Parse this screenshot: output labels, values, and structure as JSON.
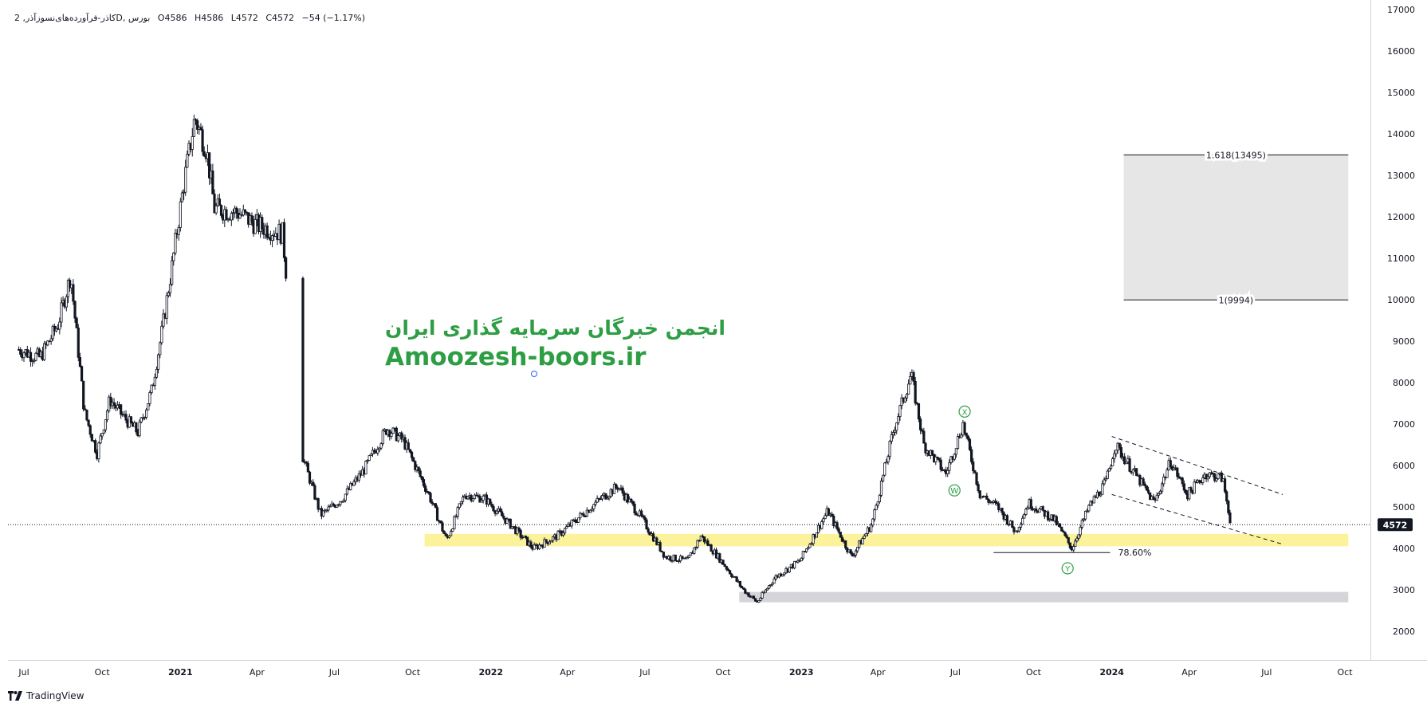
{
  "legend": {
    "symbol": "کاذر-فرآورده‌های‌نسوزآذر, 2D, بورس",
    "open": "O4586",
    "high": "H4586",
    "low": "L4572",
    "close": "C4572",
    "change": "−54 (−1.17%)"
  },
  "watermark": {
    "line1": "انجمن خبرگان سرمایه گذاری ایران",
    "line2": "Amoozesh-boors.ir"
  },
  "brand": {
    "name": "TradingView",
    "icon": "tradingview-logo-icon"
  },
  "colors": {
    "candle": "#131722",
    "support_zone": "#fbf29b",
    "lower_zone": "#d4d4d9",
    "target_zone": "#e6e6e6",
    "wave_label": "#2e9e44",
    "price_badge_bg": "#131722",
    "price_badge_text": "#ffffff"
  },
  "chart_data": {
    "type": "candlestick",
    "title": "",
    "y_axis": {
      "position": "right",
      "ylim": [
        1400,
        17150
      ],
      "ticks": [
        2000,
        3000,
        4000,
        5000,
        6000,
        7000,
        8000,
        9000,
        10000,
        11000,
        12000,
        13000,
        14000,
        15000,
        16000,
        17000
      ]
    },
    "x_axis": {
      "start": "2020-07-01",
      "end": "2024-11-15",
      "ticks": [
        {
          "label": "Jul",
          "date": "2020-07-01",
          "bold": false
        },
        {
          "label": "Oct",
          "date": "2020-10-01",
          "bold": false
        },
        {
          "label": "2021",
          "date": "2021-01-01",
          "bold": true
        },
        {
          "label": "Apr",
          "date": "2021-04-01",
          "bold": false
        },
        {
          "label": "Jul",
          "date": "2021-07-01",
          "bold": false
        },
        {
          "label": "Oct",
          "date": "2021-10-01",
          "bold": false
        },
        {
          "label": "2022",
          "date": "2022-01-01",
          "bold": true
        },
        {
          "label": "Apr",
          "date": "2022-04-01",
          "bold": false
        },
        {
          "label": "Jul",
          "date": "2022-07-01",
          "bold": false
        },
        {
          "label": "Oct",
          "date": "2022-10-01",
          "bold": false
        },
        {
          "label": "2023",
          "date": "2023-01-01",
          "bold": true
        },
        {
          "label": "Apr",
          "date": "2023-04-01",
          "bold": false
        },
        {
          "label": "Jul",
          "date": "2023-07-01",
          "bold": false
        },
        {
          "label": "Oct",
          "date": "2023-10-01",
          "bold": false
        },
        {
          "label": "2024",
          "date": "2024-01-01",
          "bold": true
        },
        {
          "label": "Apr",
          "date": "2024-04-01",
          "bold": false
        },
        {
          "label": "Jul",
          "date": "2024-07-01",
          "bold": false
        },
        {
          "label": "Oct",
          "date": "2024-10-01",
          "bold": false
        }
      ]
    },
    "price_path": [
      {
        "date": "2020-06-25",
        "price": 8800
      },
      {
        "date": "2020-07-20",
        "price": 8600
      },
      {
        "date": "2020-08-10",
        "price": 9400
      },
      {
        "date": "2020-08-25",
        "price": 10600
      },
      {
        "date": "2020-09-10",
        "price": 7300
      },
      {
        "date": "2020-09-25",
        "price": 6300
      },
      {
        "date": "2020-10-10",
        "price": 7600
      },
      {
        "date": "2020-10-25",
        "price": 7200
      },
      {
        "date": "2020-11-12",
        "price": 6800
      },
      {
        "date": "2020-11-28",
        "price": 7800
      },
      {
        "date": "2020-12-10",
        "price": 9200
      },
      {
        "date": "2020-12-22",
        "price": 10800
      },
      {
        "date": "2021-01-05",
        "price": 12800
      },
      {
        "date": "2021-01-18",
        "price": 14400
      },
      {
        "date": "2021-02-01",
        "price": 13600
      },
      {
        "date": "2021-02-10",
        "price": 12200
      },
      {
        "date": "2021-03-10",
        "price": 12100
      },
      {
        "date": "2021-04-01",
        "price": 11800
      },
      {
        "date": "2021-05-01",
        "price": 11600
      },
      {
        "date": "2021-05-25",
        "price": 6200
      },
      {
        "date": "2021-06-15",
        "price": 4800
      },
      {
        "date": "2021-07-10",
        "price": 5200
      },
      {
        "date": "2021-08-05",
        "price": 5900
      },
      {
        "date": "2021-09-01",
        "price": 6900
      },
      {
        "date": "2021-09-20",
        "price": 6600
      },
      {
        "date": "2021-10-20",
        "price": 5300
      },
      {
        "date": "2021-11-10",
        "price": 4200
      },
      {
        "date": "2021-12-01",
        "price": 5300
      },
      {
        "date": "2021-12-25",
        "price": 5200
      },
      {
        "date": "2022-02-01",
        "price": 4400
      },
      {
        "date": "2022-02-20",
        "price": 4000
      },
      {
        "date": "2022-03-20",
        "price": 4300
      },
      {
        "date": "2022-05-10",
        "price": 5200
      },
      {
        "date": "2022-05-30",
        "price": 5500
      },
      {
        "date": "2022-06-25",
        "price": 4800
      },
      {
        "date": "2022-07-25",
        "price": 3800
      },
      {
        "date": "2022-08-20",
        "price": 3700
      },
      {
        "date": "2022-09-05",
        "price": 4300
      },
      {
        "date": "2022-09-25",
        "price": 3800
      },
      {
        "date": "2022-10-25",
        "price": 3000
      },
      {
        "date": "2022-11-10",
        "price": 2700
      },
      {
        "date": "2022-12-01",
        "price": 3300
      },
      {
        "date": "2022-12-30",
        "price": 3700
      },
      {
        "date": "2023-02-01",
        "price": 4900
      },
      {
        "date": "2023-03-01",
        "price": 3800
      },
      {
        "date": "2023-03-25",
        "price": 4600
      },
      {
        "date": "2023-04-20",
        "price": 6900
      },
      {
        "date": "2023-05-10",
        "price": 8200
      },
      {
        "date": "2023-05-25",
        "price": 6500
      },
      {
        "date": "2023-06-20",
        "price": 5800
      },
      {
        "date": "2023-07-10",
        "price": 7000
      },
      {
        "date": "2023-07-30",
        "price": 5300
      },
      {
        "date": "2023-08-20",
        "price": 5000
      },
      {
        "date": "2023-09-10",
        "price": 4400
      },
      {
        "date": "2023-09-25",
        "price": 5100
      },
      {
        "date": "2023-10-25",
        "price": 4700
      },
      {
        "date": "2023-11-15",
        "price": 4000
      },
      {
        "date": "2023-12-05",
        "price": 5000
      },
      {
        "date": "2023-12-25",
        "price": 5600
      },
      {
        "date": "2024-01-05",
        "price": 6500
      },
      {
        "date": "2024-01-25",
        "price": 5900
      },
      {
        "date": "2024-02-20",
        "price": 5100
      },
      {
        "date": "2024-03-10",
        "price": 6100
      },
      {
        "date": "2024-03-30",
        "price": 5300
      },
      {
        "date": "2024-04-20",
        "price": 5800
      },
      {
        "date": "2024-05-10",
        "price": 5700
      },
      {
        "date": "2024-05-20",
        "price": 4600
      }
    ],
    "gaps": [
      [
        "2021-05-05",
        "2021-05-24"
      ]
    ],
    "last_price": 4572,
    "fib_levels": [
      {
        "label": "1.618(13495)",
        "price": 13495
      },
      {
        "label": "1(9994)",
        "price": 9994
      }
    ],
    "target_box": {
      "from": "2024-01-15",
      "to": "2024-10-05",
      "top": 13495,
      "bottom": 9994
    },
    "support_zone": {
      "from": "2021-10-15",
      "to": "2024-10-05",
      "top": 4350,
      "bottom": 4050
    },
    "lower_zone": {
      "from": "2022-10-20",
      "to": "2024-10-05",
      "top": 2950,
      "bottom": 2700
    },
    "retracement": {
      "label": "78.60%",
      "price": 3900,
      "from": "2023-08-15",
      "to": "2023-12-30"
    },
    "wave_labels": [
      {
        "label": "X",
        "date": "2023-07-12",
        "price": 7300
      },
      {
        "label": "W",
        "date": "2023-06-30",
        "price": 5400
      },
      {
        "label": "Y",
        "date": "2023-11-10",
        "price": 3520
      }
    ],
    "channel": {
      "upper": [
        {
          "date": "2024-01-01",
          "price": 6700
        },
        {
          "date": "2024-07-20",
          "price": 5300
        }
      ],
      "lower": [
        {
          "date": "2024-01-01",
          "price": 5300
        },
        {
          "date": "2024-07-20",
          "price": 4100
        }
      ]
    }
  }
}
